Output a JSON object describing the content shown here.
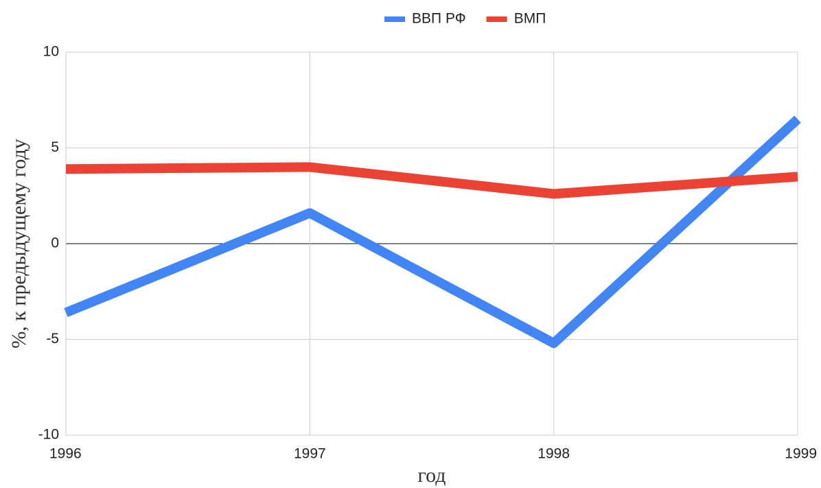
{
  "chart_data": {
    "type": "line",
    "x": [
      1996,
      1997,
      1998,
      1999
    ],
    "series": [
      {
        "name": "ВВП РФ",
        "color": "#4285f4",
        "values": [
          -3.6,
          1.6,
          -5.2,
          6.5
        ]
      },
      {
        "name": "ВМП",
        "color": "#ea4335",
        "values": [
          3.9,
          4.0,
          2.6,
          3.5
        ]
      }
    ],
    "xlim": [
      1996,
      1999
    ],
    "xticks": [
      1996,
      1997,
      1998,
      1999
    ],
    "ylim": [
      -10,
      10
    ],
    "yticks": [
      -10,
      -5,
      0,
      5,
      10
    ],
    "xlabel": "год",
    "ylabel": "%, к предыдущему году",
    "grid": true,
    "legend": "top"
  }
}
